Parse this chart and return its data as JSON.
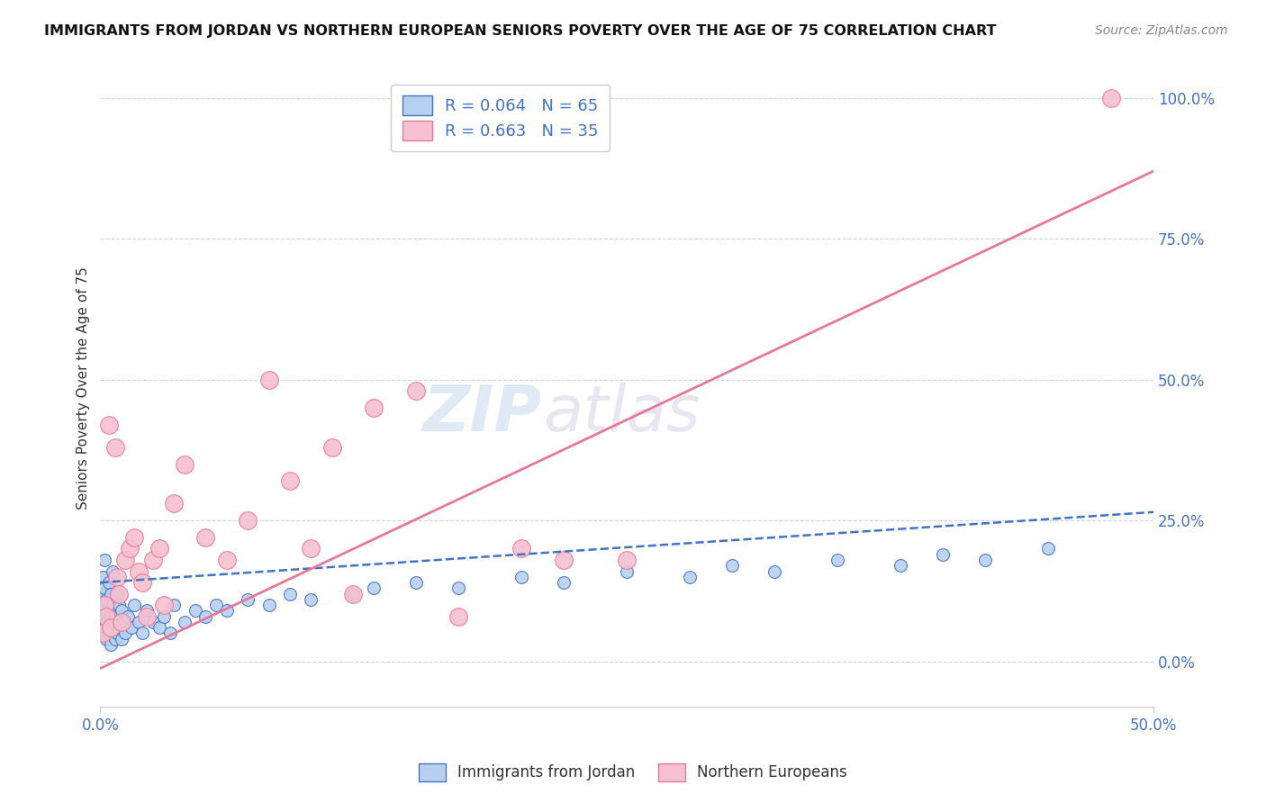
{
  "title": "IMMIGRANTS FROM JORDAN VS NORTHERN EUROPEAN SENIORS POVERTY OVER THE AGE OF 75 CORRELATION CHART",
  "source": "Source: ZipAtlas.com",
  "ylabel": "Seniors Poverty Over the Age of 75",
  "yticks": [
    "0.0%",
    "25.0%",
    "50.0%",
    "75.0%",
    "100.0%"
  ],
  "ytick_vals": [
    0.0,
    0.25,
    0.5,
    0.75,
    1.0
  ],
  "watermark_zip": "ZIP",
  "watermark_atlas": "atlas",
  "legend1_label": "R = 0.064   N = 65",
  "legend2_label": "R = 0.663   N = 35",
  "legend1_color": "#b8d0f0",
  "legend2_color": "#f5c0d0",
  "line1_color": "#4472c4",
  "line2_color": "#e87898",
  "background_color": "#ffffff",
  "grid_color": "#c8d4e8",
  "jordan_x": [
    0.001,
    0.001,
    0.001,
    0.001,
    0.002,
    0.002,
    0.002,
    0.002,
    0.003,
    0.003,
    0.003,
    0.004,
    0.004,
    0.004,
    0.005,
    0.005,
    0.005,
    0.006,
    0.006,
    0.006,
    0.007,
    0.007,
    0.008,
    0.008,
    0.009,
    0.009,
    0.01,
    0.01,
    0.011,
    0.012,
    0.013,
    0.015,
    0.016,
    0.018,
    0.02,
    0.022,
    0.025,
    0.028,
    0.03,
    0.033,
    0.035,
    0.04,
    0.045,
    0.05,
    0.055,
    0.06,
    0.07,
    0.08,
    0.09,
    0.1,
    0.12,
    0.13,
    0.15,
    0.17,
    0.2,
    0.22,
    0.25,
    0.28,
    0.3,
    0.32,
    0.35,
    0.38,
    0.4,
    0.42,
    0.45
  ],
  "jordan_y": [
    0.05,
    0.08,
    0.12,
    0.15,
    0.06,
    0.09,
    0.13,
    0.18,
    0.04,
    0.07,
    0.11,
    0.05,
    0.09,
    0.14,
    0.03,
    0.08,
    0.12,
    0.06,
    0.1,
    0.16,
    0.04,
    0.08,
    0.05,
    0.12,
    0.06,
    0.1,
    0.04,
    0.09,
    0.07,
    0.05,
    0.08,
    0.06,
    0.1,
    0.07,
    0.05,
    0.09,
    0.07,
    0.06,
    0.08,
    0.05,
    0.1,
    0.07,
    0.09,
    0.08,
    0.1,
    0.09,
    0.11,
    0.1,
    0.12,
    0.11,
    0.12,
    0.13,
    0.14,
    0.13,
    0.15,
    0.14,
    0.16,
    0.15,
    0.17,
    0.16,
    0.18,
    0.17,
    0.19,
    0.18,
    0.2
  ],
  "northern_x": [
    0.001,
    0.002,
    0.003,
    0.004,
    0.005,
    0.007,
    0.008,
    0.009,
    0.01,
    0.012,
    0.014,
    0.016,
    0.018,
    0.02,
    0.022,
    0.025,
    0.028,
    0.03,
    0.035,
    0.04,
    0.05,
    0.06,
    0.07,
    0.08,
    0.09,
    0.1,
    0.11,
    0.12,
    0.13,
    0.15,
    0.17,
    0.2,
    0.22,
    0.25,
    0.48
  ],
  "northern_y": [
    0.05,
    0.1,
    0.08,
    0.42,
    0.06,
    0.38,
    0.15,
    0.12,
    0.07,
    0.18,
    0.2,
    0.22,
    0.16,
    0.14,
    0.08,
    0.18,
    0.2,
    0.1,
    0.28,
    0.35,
    0.22,
    0.18,
    0.25,
    0.5,
    0.32,
    0.2,
    0.38,
    0.12,
    0.45,
    0.48,
    0.08,
    0.2,
    0.18,
    0.18,
    1.0
  ],
  "pink_line_x0": -0.01,
  "pink_line_y0": -0.03,
  "pink_line_x1": 0.5,
  "pink_line_y1": 0.87,
  "blue_line_x0": 0.0,
  "blue_line_y0": 0.14,
  "blue_line_x1": 0.5,
  "blue_line_y1": 0.265,
  "xlim": [
    0.0,
    0.5
  ],
  "ylim": [
    -0.08,
    1.05
  ]
}
